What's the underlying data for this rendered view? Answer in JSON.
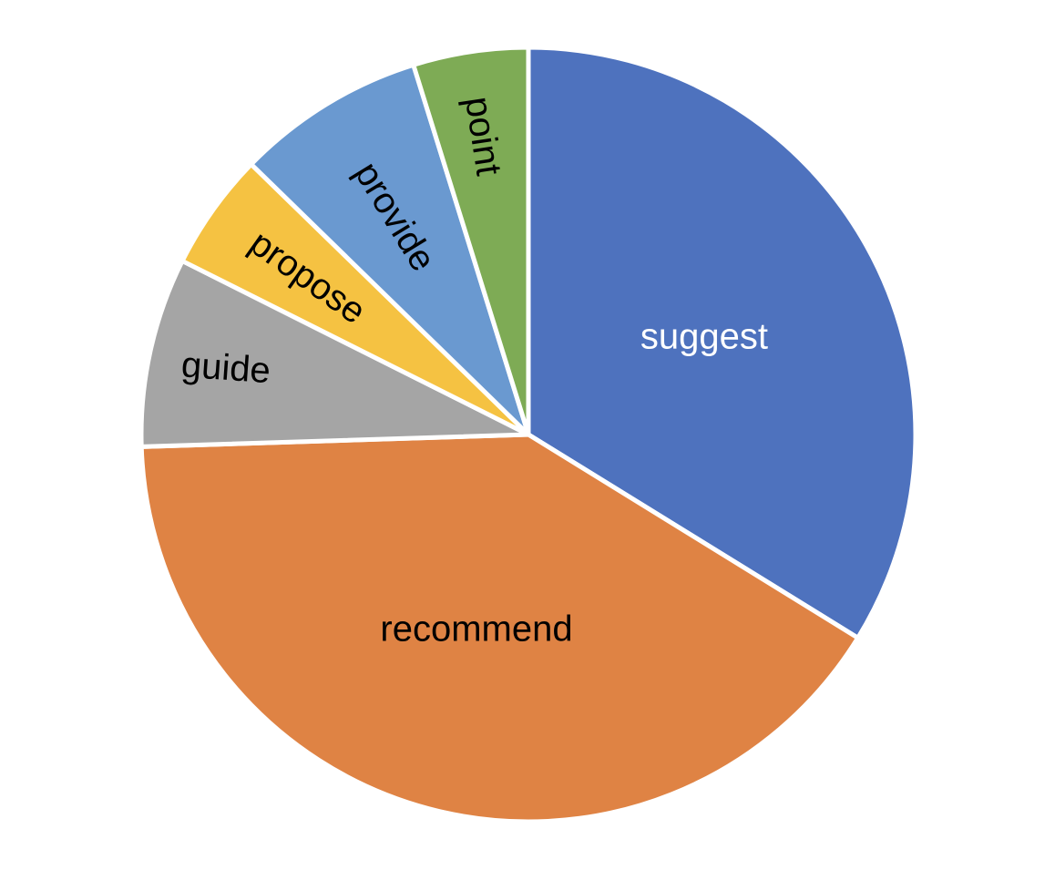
{
  "chart_data": {
    "type": "pie",
    "title": "",
    "start_angle_deg": 0,
    "direction": "clockwise",
    "slices": [
      {
        "label": "suggest",
        "value": 33.8,
        "color": "#4E72BE",
        "label_color": "#ffffff"
      },
      {
        "label": "recommend",
        "value": 40.7,
        "color": "#DF8344",
        "label_color": "#000000"
      },
      {
        "label": "guide",
        "value": 7.9,
        "color": "#A5A5A5",
        "label_color": "#000000"
      },
      {
        "label": "propose",
        "value": 4.9,
        "color": "#F5C242",
        "label_color": "#000000"
      },
      {
        "label": "provide",
        "value": 7.9,
        "color": "#6A99D0",
        "label_color": "#000000"
      },
      {
        "label": "point",
        "value": 4.8,
        "color": "#7EAB55",
        "label_color": "#000000"
      }
    ],
    "legend": "none"
  }
}
